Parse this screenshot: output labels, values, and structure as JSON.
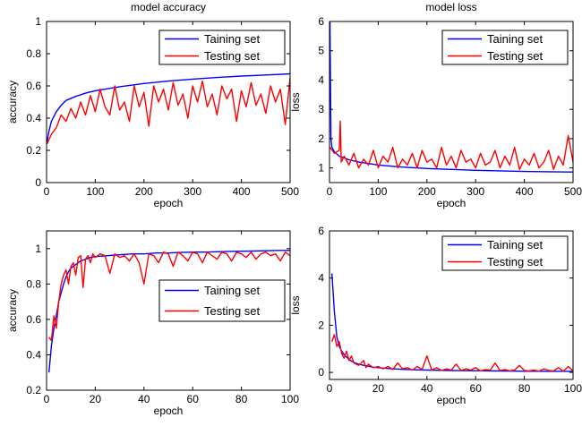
{
  "chart_data": [
    {
      "type": "line",
      "title": "model accuracy",
      "xlabel": "epoch",
      "ylabel": "accuracy",
      "xlim": [
        0,
        500
      ],
      "ylim": [
        0,
        1
      ],
      "xticks": [
        0,
        100,
        200,
        300,
        400,
        500
      ],
      "yticks": [
        0,
        0.2,
        0.4,
        0.6,
        0.8,
        1
      ],
      "tick_labels_x": [
        "0",
        "100",
        "200",
        "300",
        "400",
        "500"
      ],
      "tick_labels_y": [
        "0",
        "0.2",
        "0.4",
        "0.6",
        "0.8",
        "1"
      ],
      "legend_position": "top-right",
      "series": [
        {
          "name": "Taining set",
          "color": "#0000ff",
          "x": [
            1,
            5,
            10,
            20,
            30,
            40,
            60,
            80,
            100,
            150,
            200,
            250,
            300,
            350,
            400,
            450,
            500
          ],
          "y": [
            0.25,
            0.32,
            0.38,
            0.44,
            0.48,
            0.51,
            0.535,
            0.555,
            0.57,
            0.595,
            0.615,
            0.63,
            0.642,
            0.652,
            0.661,
            0.668,
            0.675
          ]
        },
        {
          "name": "Testing set",
          "color": "#ff0000",
          "x": [
            1,
            10,
            20,
            30,
            40,
            50,
            60,
            70,
            80,
            90,
            100,
            110,
            120,
            130,
            140,
            150,
            160,
            170,
            180,
            190,
            200,
            210,
            220,
            230,
            240,
            250,
            260,
            270,
            280,
            290,
            300,
            310,
            320,
            330,
            340,
            350,
            360,
            370,
            380,
            390,
            400,
            410,
            420,
            430,
            440,
            450,
            460,
            470,
            480,
            490,
            500
          ],
          "y": [
            0.24,
            0.3,
            0.34,
            0.42,
            0.38,
            0.46,
            0.4,
            0.5,
            0.42,
            0.54,
            0.44,
            0.58,
            0.47,
            0.42,
            0.6,
            0.45,
            0.5,
            0.38,
            0.6,
            0.47,
            0.56,
            0.35,
            0.6,
            0.5,
            0.58,
            0.45,
            0.62,
            0.48,
            0.55,
            0.4,
            0.6,
            0.5,
            0.63,
            0.47,
            0.55,
            0.42,
            0.6,
            0.52,
            0.58,
            0.38,
            0.57,
            0.47,
            0.62,
            0.48,
            0.55,
            0.43,
            0.6,
            0.5,
            0.58,
            0.36,
            0.65
          ]
        }
      ]
    },
    {
      "type": "line",
      "title": "model loss",
      "xlabel": "epoch",
      "ylabel": "loss",
      "xlim": [
        0,
        500
      ],
      "ylim": [
        0.5,
        6
      ],
      "xticks": [
        0,
        100,
        200,
        300,
        400,
        500
      ],
      "yticks": [
        1,
        2,
        3,
        4,
        5,
        6
      ],
      "tick_labels_x": [
        "0",
        "100",
        "200",
        "300",
        "400",
        "500"
      ],
      "tick_labels_y": [
        "1",
        "2",
        "3",
        "4",
        "5",
        "6"
      ],
      "legend_position": "top-right",
      "series": [
        {
          "name": "Taining set",
          "color": "#0000ff",
          "x": [
            1,
            3,
            5,
            10,
            20,
            40,
            60,
            80,
            100,
            150,
            200,
            250,
            300,
            350,
            400,
            450,
            500
          ],
          "y": [
            6.0,
            2.0,
            1.7,
            1.55,
            1.4,
            1.28,
            1.2,
            1.15,
            1.1,
            1.03,
            0.98,
            0.95,
            0.92,
            0.9,
            0.88,
            0.87,
            0.86
          ]
        },
        {
          "name": "Testing set",
          "color": "#ff0000",
          "x": [
            1,
            10,
            20,
            22,
            24,
            30,
            40,
            50,
            60,
            70,
            80,
            90,
            100,
            110,
            120,
            130,
            140,
            150,
            160,
            170,
            180,
            190,
            200,
            210,
            220,
            230,
            240,
            250,
            260,
            270,
            280,
            290,
            300,
            310,
            320,
            330,
            340,
            350,
            360,
            370,
            380,
            390,
            400,
            410,
            420,
            430,
            440,
            450,
            460,
            470,
            480,
            490,
            500
          ],
          "y": [
            1.7,
            1.5,
            1.6,
            2.6,
            1.2,
            1.4,
            1.1,
            1.5,
            1.0,
            1.3,
            1.1,
            1.6,
            1.0,
            1.4,
            1.2,
            1.7,
            1.0,
            1.3,
            1.1,
            1.5,
            1.0,
            1.6,
            1.2,
            1.3,
            1.0,
            1.7,
            1.1,
            1.4,
            1.0,
            1.6,
            1.2,
            1.3,
            1.0,
            1.5,
            1.1,
            1.2,
            1.6,
            1.0,
            1.4,
            1.1,
            1.7,
            0.95,
            1.3,
            1.1,
            1.5,
            1.0,
            1.2,
            1.6,
            0.95,
            1.4,
            1.1,
            2.1,
            1.2
          ]
        }
      ]
    },
    {
      "type": "line",
      "title": "",
      "xlabel": "epoch",
      "ylabel": "accuracy",
      "xlim": [
        0,
        100
      ],
      "ylim": [
        0.2,
        1.1
      ],
      "xticks": [
        0,
        20,
        40,
        60,
        80,
        100
      ],
      "yticks": [
        0.2,
        0.4,
        0.6,
        0.8,
        1
      ],
      "tick_labels_x": [
        "0",
        "20",
        "40",
        "60",
        "80",
        "100"
      ],
      "tick_labels_y": [
        "0.2",
        "0.4",
        "0.6",
        "0.8",
        "1"
      ],
      "legend_position": "center-right",
      "series": [
        {
          "name": "Taining set",
          "color": "#0000ff",
          "x": [
            1,
            2,
            3,
            4,
            5,
            6,
            7,
            8,
            9,
            10,
            12,
            14,
            16,
            18,
            20,
            25,
            30,
            35,
            40,
            45,
            50,
            55,
            60,
            65,
            70,
            75,
            80,
            85,
            90,
            95,
            100
          ],
          "y": [
            0.3,
            0.45,
            0.55,
            0.62,
            0.7,
            0.75,
            0.8,
            0.84,
            0.87,
            0.89,
            0.91,
            0.93,
            0.94,
            0.95,
            0.955,
            0.96,
            0.965,
            0.97,
            0.97,
            0.975,
            0.975,
            0.978,
            0.98,
            0.98,
            0.982,
            0.984,
            0.985,
            0.986,
            0.988,
            0.99,
            0.99
          ]
        },
        {
          "name": "Testing set",
          "color": "#ff0000",
          "x": [
            1,
            2,
            3,
            4,
            5,
            6,
            7,
            8,
            9,
            10,
            11,
            12,
            13,
            14,
            15,
            16,
            17,
            18,
            19,
            20,
            22,
            24,
            26,
            28,
            30,
            32,
            34,
            36,
            38,
            40,
            42,
            44,
            46,
            48,
            50,
            52,
            54,
            56,
            58,
            60,
            62,
            64,
            66,
            68,
            70,
            72,
            74,
            76,
            78,
            80,
            82,
            84,
            86,
            88,
            90,
            92,
            94,
            96,
            98,
            100
          ],
          "y": [
            0.5,
            0.48,
            0.62,
            0.55,
            0.7,
            0.8,
            0.85,
            0.88,
            0.8,
            0.9,
            0.92,
            0.85,
            0.95,
            0.96,
            0.78,
            0.94,
            0.96,
            0.92,
            0.97,
            0.95,
            0.97,
            0.96,
            0.86,
            0.97,
            0.95,
            0.96,
            0.93,
            0.97,
            0.92,
            0.8,
            0.97,
            0.96,
            0.92,
            0.98,
            0.97,
            0.9,
            0.98,
            0.96,
            0.93,
            0.98,
            0.97,
            0.92,
            0.98,
            0.96,
            0.94,
            0.98,
            0.97,
            0.93,
            0.98,
            0.97,
            0.95,
            0.98,
            0.94,
            0.97,
            0.98,
            0.96,
            0.97,
            0.93,
            0.98,
            0.96
          ]
        }
      ]
    },
    {
      "type": "line",
      "title": "",
      "xlabel": "epoch",
      "ylabel": "loss",
      "xlim": [
        0,
        100
      ],
      "ylim": [
        -0.3,
        6
      ],
      "xticks": [
        0,
        20,
        40,
        60,
        80,
        100
      ],
      "yticks": [
        0,
        2,
        4,
        6
      ],
      "tick_labels_x": [
        "0",
        "20",
        "40",
        "60",
        "80",
        "100"
      ],
      "tick_labels_y": [
        "0",
        "2",
        "4",
        "6"
      ],
      "legend_position": "top-right",
      "series": [
        {
          "name": "Taining set",
          "color": "#0000ff",
          "x": [
            1,
            2,
            3,
            4,
            5,
            6,
            7,
            8,
            9,
            10,
            12,
            14,
            16,
            18,
            20,
            25,
            30,
            35,
            40,
            50,
            60,
            70,
            80,
            90,
            100
          ],
          "y": [
            4.2,
            2.6,
            1.5,
            1.1,
            0.9,
            0.75,
            0.65,
            0.55,
            0.48,
            0.42,
            0.35,
            0.3,
            0.26,
            0.22,
            0.2,
            0.16,
            0.13,
            0.11,
            0.1,
            0.08,
            0.07,
            0.06,
            0.05,
            0.045,
            0.04
          ]
        },
        {
          "name": "Testing set",
          "color": "#ff0000",
          "x": [
            1,
            2,
            3,
            4,
            5,
            6,
            7,
            8,
            9,
            10,
            12,
            14,
            15,
            16,
            18,
            20,
            22,
            24,
            26,
            28,
            30,
            32,
            34,
            36,
            38,
            40,
            42,
            44,
            46,
            48,
            50,
            52,
            54,
            56,
            58,
            60,
            62,
            64,
            66,
            68,
            70,
            72,
            74,
            76,
            78,
            80,
            82,
            84,
            86,
            88,
            90,
            92,
            94,
            96,
            98,
            100
          ],
          "y": [
            1.3,
            1.6,
            1.1,
            1.3,
            0.8,
            0.6,
            0.9,
            0.5,
            0.7,
            0.4,
            0.3,
            0.5,
            0.2,
            0.35,
            0.2,
            0.25,
            0.15,
            0.25,
            0.12,
            0.4,
            0.15,
            0.2,
            0.1,
            0.25,
            0.12,
            0.7,
            0.1,
            0.2,
            0.08,
            0.15,
            0.1,
            0.35,
            0.08,
            0.15,
            0.1,
            0.2,
            0.06,
            0.12,
            0.1,
            0.4,
            0.08,
            0.12,
            0.06,
            0.1,
            0.3,
            0.08,
            0.06,
            0.1,
            0.05,
            0.15,
            0.08,
            0.06,
            0.2,
            0.05,
            0.25,
            0.06
          ]
        }
      ]
    }
  ]
}
